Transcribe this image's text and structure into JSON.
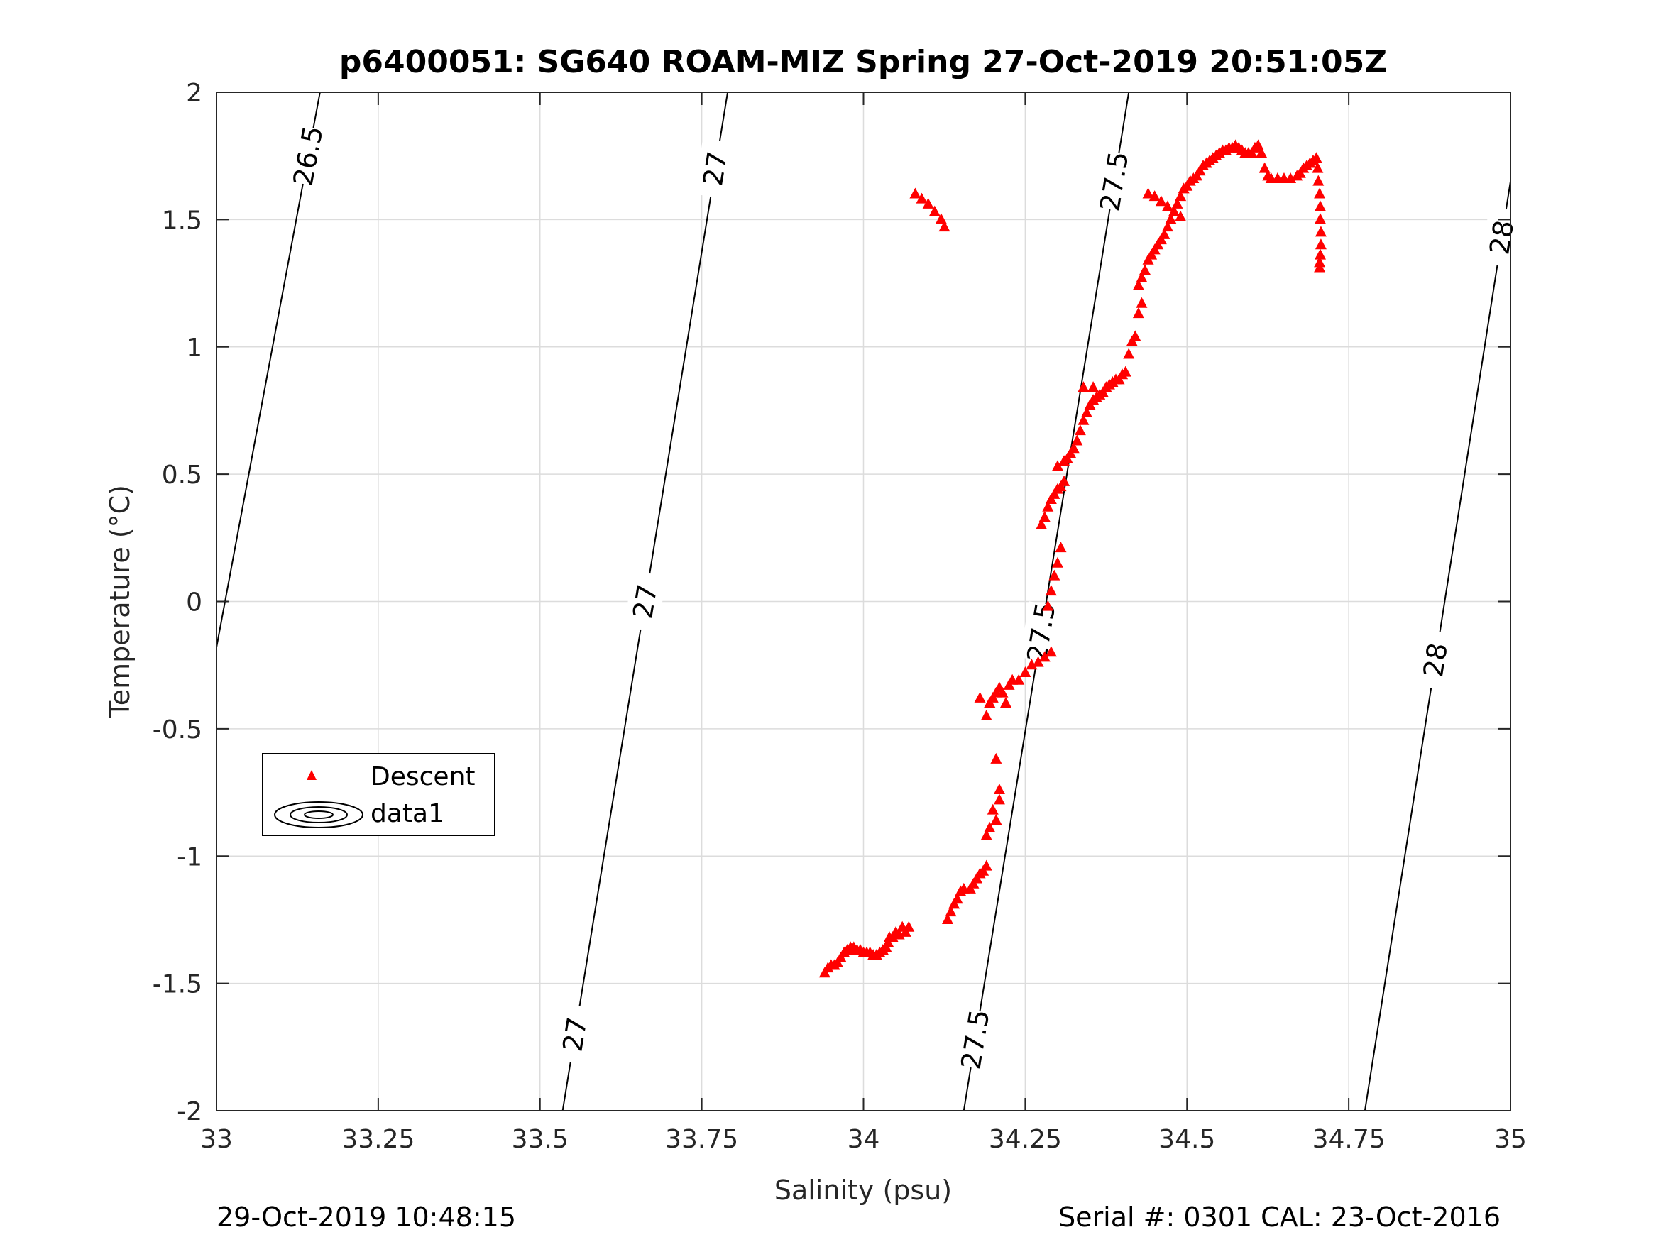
{
  "chart_data": {
    "type": "scatter",
    "title": "p6400051: SG640 ROAM-MIZ Spring 27-Oct-2019 20:51:05Z",
    "xlabel": "Salinity (psu)",
    "ylabel": "Temperature (°C)",
    "xlim": [
      33,
      35
    ],
    "ylim": [
      -2,
      2
    ],
    "xticks": [
      33,
      33.25,
      33.5,
      33.75,
      34,
      34.25,
      34.5,
      34.75,
      35
    ],
    "xtick_labels": [
      "33",
      "33.25",
      "33.5",
      "33.75",
      "34",
      "34.25",
      "34.5",
      "34.75",
      "35"
    ],
    "yticks": [
      -2,
      -1.5,
      -1,
      -0.5,
      0,
      0.5,
      1,
      1.5,
      2
    ],
    "ytick_labels": [
      "-2",
      "-1.5",
      "-1",
      "-0.5",
      "0",
      "0.5",
      "1",
      "1.5",
      "2"
    ],
    "grid": true,
    "legend_position": "lower-left",
    "series": [
      {
        "name": "Descent",
        "marker": "triangle",
        "color": "#ff0000",
        "points": [
          [
            33.94,
            -1.46
          ],
          [
            33.945,
            -1.44
          ],
          [
            33.95,
            -1.43
          ],
          [
            33.955,
            -1.43
          ],
          [
            33.96,
            -1.42
          ],
          [
            33.965,
            -1.4
          ],
          [
            33.97,
            -1.38
          ],
          [
            33.975,
            -1.37
          ],
          [
            33.98,
            -1.36
          ],
          [
            33.985,
            -1.36
          ],
          [
            33.99,
            -1.37
          ],
          [
            33.995,
            -1.37
          ],
          [
            34.0,
            -1.38
          ],
          [
            34.005,
            -1.38
          ],
          [
            34.01,
            -1.38
          ],
          [
            34.015,
            -1.39
          ],
          [
            34.02,
            -1.39
          ],
          [
            34.025,
            -1.38
          ],
          [
            34.03,
            -1.37
          ],
          [
            34.035,
            -1.36
          ],
          [
            34.038,
            -1.34
          ],
          [
            34.04,
            -1.32
          ],
          [
            34.045,
            -1.32
          ],
          [
            34.05,
            -1.3
          ],
          [
            34.055,
            -1.31
          ],
          [
            34.06,
            -1.28
          ],
          [
            34.065,
            -1.3
          ],
          [
            34.07,
            -1.28
          ],
          [
            34.13,
            -1.25
          ],
          [
            34.135,
            -1.22
          ],
          [
            34.14,
            -1.19
          ],
          [
            34.145,
            -1.17
          ],
          [
            34.15,
            -1.14
          ],
          [
            34.155,
            -1.13
          ],
          [
            34.165,
            -1.13
          ],
          [
            34.17,
            -1.11
          ],
          [
            34.175,
            -1.09
          ],
          [
            34.18,
            -1.07
          ],
          [
            34.185,
            -1.06
          ],
          [
            34.19,
            -1.04
          ],
          [
            34.19,
            -0.92
          ],
          [
            34.195,
            -0.89
          ],
          [
            34.2,
            -0.82
          ],
          [
            34.205,
            -0.86
          ],
          [
            34.21,
            -0.78
          ],
          [
            34.205,
            -0.62
          ],
          [
            34.21,
            -0.74
          ],
          [
            34.18,
            -0.38
          ],
          [
            34.19,
            -0.45
          ],
          [
            34.195,
            -0.4
          ],
          [
            34.2,
            -0.38
          ],
          [
            34.205,
            -0.36
          ],
          [
            34.21,
            -0.34
          ],
          [
            34.215,
            -0.36
          ],
          [
            34.22,
            -0.4
          ],
          [
            34.225,
            -0.33
          ],
          [
            34.23,
            -0.31
          ],
          [
            34.24,
            -0.31
          ],
          [
            34.25,
            -0.28
          ],
          [
            34.26,
            -0.25
          ],
          [
            34.27,
            -0.24
          ],
          [
            34.28,
            -0.22
          ],
          [
            34.29,
            -0.2
          ],
          [
            34.285,
            -0.02
          ],
          [
            34.29,
            0.04
          ],
          [
            34.295,
            0.1
          ],
          [
            34.3,
            0.15
          ],
          [
            34.305,
            0.21
          ],
          [
            34.275,
            0.3
          ],
          [
            34.28,
            0.33
          ],
          [
            34.285,
            0.37
          ],
          [
            34.29,
            0.4
          ],
          [
            34.295,
            0.42
          ],
          [
            34.3,
            0.44
          ],
          [
            34.305,
            0.45
          ],
          [
            34.31,
            0.47
          ],
          [
            34.3,
            0.53
          ],
          [
            34.31,
            0.55
          ],
          [
            34.315,
            0.56
          ],
          [
            34.32,
            0.58
          ],
          [
            34.325,
            0.6
          ],
          [
            34.33,
            0.63
          ],
          [
            34.335,
            0.67
          ],
          [
            34.34,
            0.71
          ],
          [
            34.345,
            0.74
          ],
          [
            34.35,
            0.77
          ],
          [
            34.355,
            0.79
          ],
          [
            34.36,
            0.8
          ],
          [
            34.365,
            0.81
          ],
          [
            34.37,
            0.82
          ],
          [
            34.375,
            0.84
          ],
          [
            34.38,
            0.85
          ],
          [
            34.385,
            0.86
          ],
          [
            34.39,
            0.87
          ],
          [
            34.395,
            0.87
          ],
          [
            34.4,
            0.89
          ],
          [
            34.405,
            0.9
          ],
          [
            34.34,
            0.84
          ],
          [
            34.355,
            0.84
          ],
          [
            34.41,
            0.97
          ],
          [
            34.415,
            1.02
          ],
          [
            34.42,
            1.04
          ],
          [
            34.425,
            1.13
          ],
          [
            34.43,
            1.17
          ],
          [
            34.425,
            1.24
          ],
          [
            34.43,
            1.27
          ],
          [
            34.435,
            1.3
          ],
          [
            34.44,
            1.34
          ],
          [
            34.445,
            1.36
          ],
          [
            34.45,
            1.38
          ],
          [
            34.455,
            1.4
          ],
          [
            34.46,
            1.42
          ],
          [
            34.465,
            1.44
          ],
          [
            34.47,
            1.47
          ],
          [
            34.475,
            1.5
          ],
          [
            34.48,
            1.53
          ],
          [
            34.485,
            1.56
          ],
          [
            34.49,
            1.59
          ],
          [
            34.495,
            1.62
          ],
          [
            34.5,
            1.63
          ],
          [
            34.505,
            1.65
          ],
          [
            34.51,
            1.66
          ],
          [
            34.515,
            1.67
          ],
          [
            34.52,
            1.69
          ],
          [
            34.525,
            1.71
          ],
          [
            34.53,
            1.72
          ],
          [
            34.535,
            1.73
          ],
          [
            34.54,
            1.74
          ],
          [
            34.545,
            1.75
          ],
          [
            34.55,
            1.76
          ],
          [
            34.555,
            1.77
          ],
          [
            34.56,
            1.77
          ],
          [
            34.565,
            1.78
          ],
          [
            34.57,
            1.78
          ],
          [
            34.575,
            1.79
          ],
          [
            34.58,
            1.78
          ],
          [
            34.585,
            1.77
          ],
          [
            34.59,
            1.76
          ],
          [
            34.595,
            1.76
          ],
          [
            34.6,
            1.76
          ],
          [
            34.605,
            1.78
          ],
          [
            34.61,
            1.79
          ],
          [
            34.615,
            1.76
          ],
          [
            34.62,
            1.7
          ],
          [
            34.625,
            1.67
          ],
          [
            34.63,
            1.66
          ],
          [
            34.64,
            1.66
          ],
          [
            34.65,
            1.66
          ],
          [
            34.66,
            1.66
          ],
          [
            34.67,
            1.67
          ],
          [
            34.675,
            1.68
          ],
          [
            34.68,
            1.7
          ],
          [
            34.685,
            1.71
          ],
          [
            34.69,
            1.72
          ],
          [
            34.695,
            1.73
          ],
          [
            34.7,
            1.74
          ],
          [
            34.702,
            1.7
          ],
          [
            34.703,
            1.65
          ],
          [
            34.705,
            1.6
          ],
          [
            34.706,
            1.55
          ],
          [
            34.706,
            1.5
          ],
          [
            34.707,
            1.45
          ],
          [
            34.707,
            1.4
          ],
          [
            34.706,
            1.36
          ],
          [
            34.705,
            1.33
          ],
          [
            34.705,
            1.31
          ],
          [
            34.08,
            1.6
          ],
          [
            34.09,
            1.58
          ],
          [
            34.1,
            1.56
          ],
          [
            34.11,
            1.53
          ],
          [
            34.12,
            1.5
          ],
          [
            34.125,
            1.47
          ],
          [
            34.44,
            1.6
          ],
          [
            34.45,
            1.59
          ],
          [
            34.46,
            1.57
          ],
          [
            34.47,
            1.55
          ],
          [
            34.48,
            1.53
          ],
          [
            34.49,
            1.51
          ]
        ]
      },
      {
        "name": "data1",
        "type": "contour",
        "color": "#000000",
        "levels": [
          26.5,
          27,
          27.5,
          28
        ]
      }
    ],
    "contour_labels": [
      "26.5",
      "27",
      "27",
      "27",
      "27.5",
      "27.5",
      "27.5",
      "28",
      "28"
    ]
  },
  "footer": {
    "left": "29-Oct-2019 10:48:15",
    "right": "Serial #: 0301  CAL: 23-Oct-2016"
  }
}
